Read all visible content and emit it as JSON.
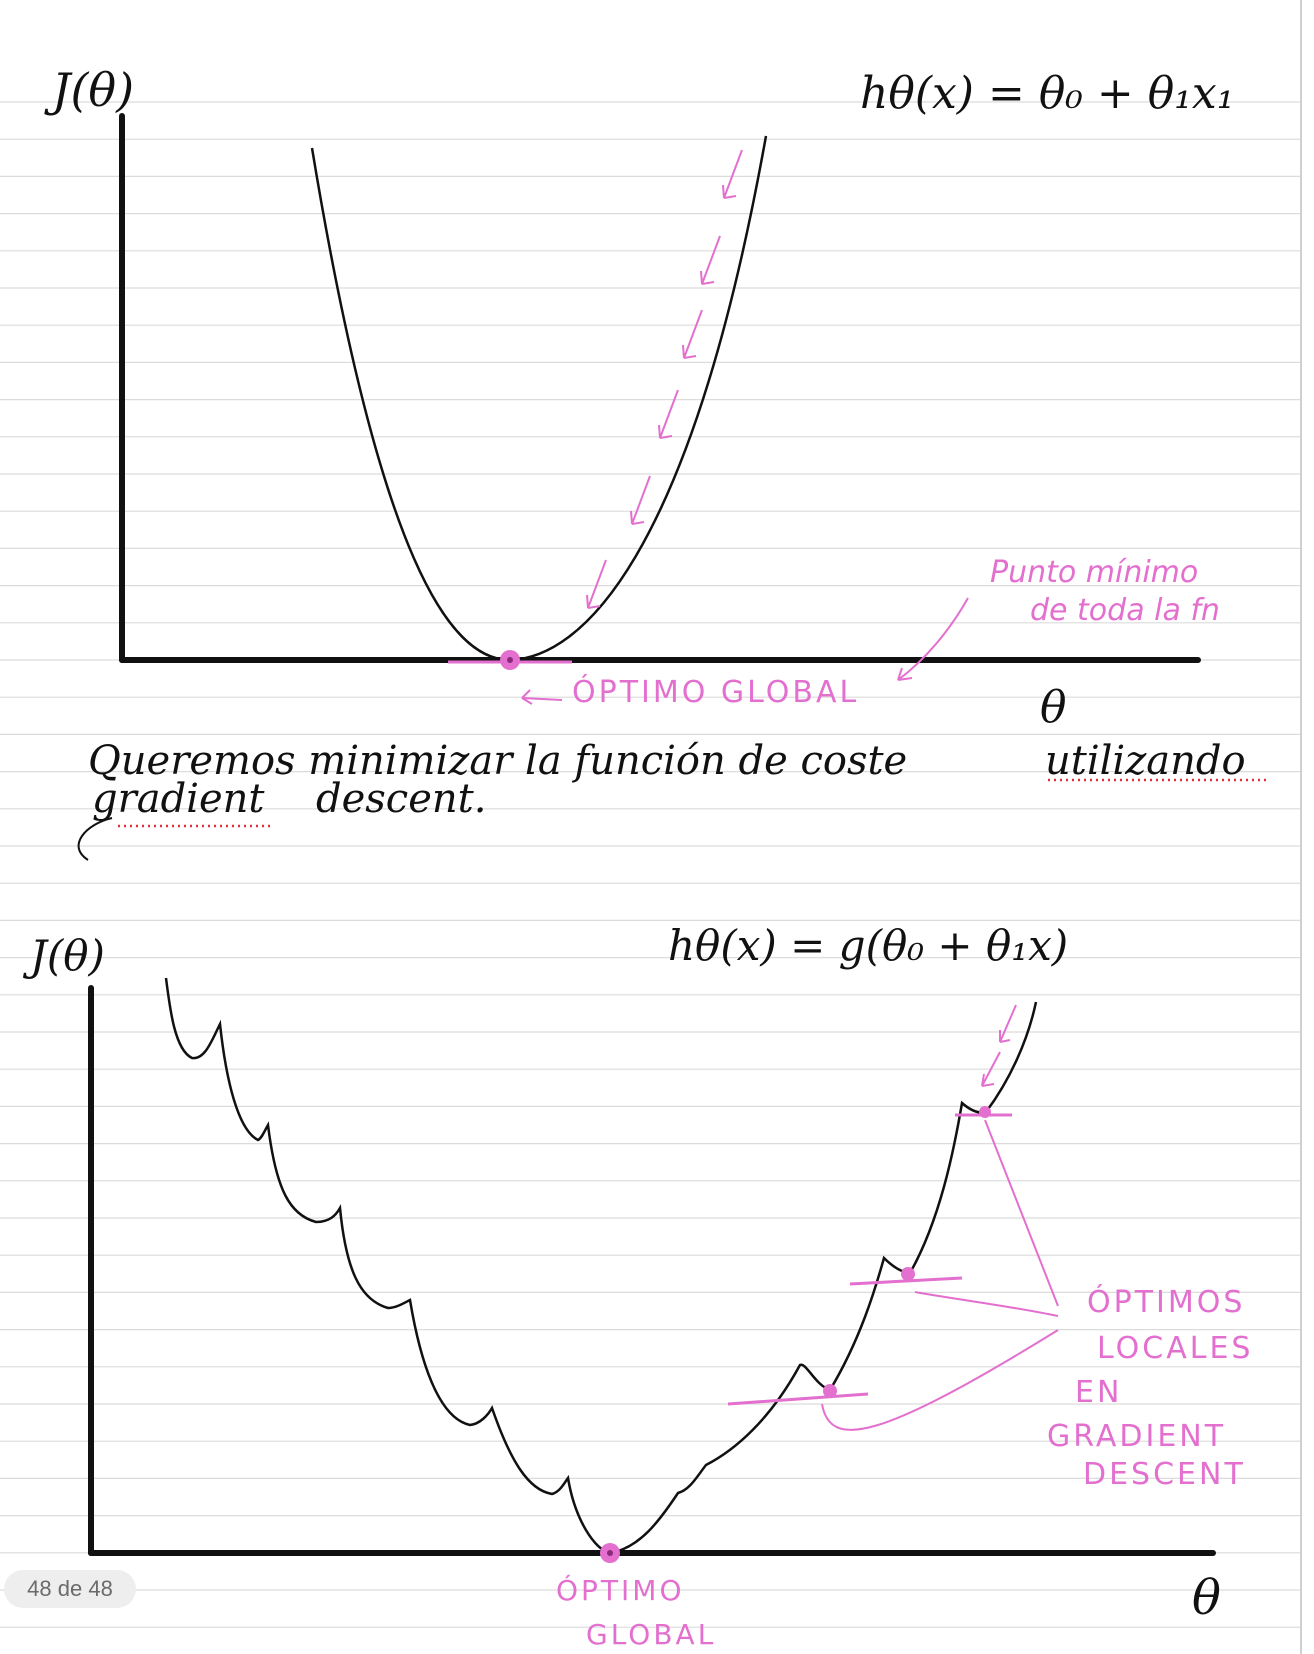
{
  "page": {
    "counter_label": "48 de 48",
    "colors": {
      "ink": "#111111",
      "highlight": "#e36fcf",
      "rule": "#dcdcdc",
      "spellcheck": "#e0303a"
    }
  },
  "graph_top": {
    "y_axis_label": "J(θ)",
    "x_axis_label": "θ",
    "hypothesis": "hθ(x) = θ₀ + θ₁x₁",
    "minimum_note_line1": "Punto mínimo",
    "minimum_note_line2": "de toda la fn",
    "minimum_label": "ÓPTIMO GLOBAL"
  },
  "note": {
    "line1_part1": "Queremos minimizar la función de coste",
    "line1_part2": "utilizando",
    "line2_part1": "gradient",
    "line2_part2": "descent."
  },
  "graph_bottom": {
    "y_axis_label": "J(θ)",
    "x_axis_label": "θ",
    "hypothesis": "hθ(x) = g(θ₀ + θ₁x)",
    "local_label_1": "ÓPTIMOS",
    "local_label_2": "LOCALES",
    "local_label_3": "EN",
    "local_label_4": "GRADIENT",
    "local_label_5": "DESCENT",
    "global_label_1": "ÓPTIMO",
    "global_label_2": "GLOBAL"
  }
}
